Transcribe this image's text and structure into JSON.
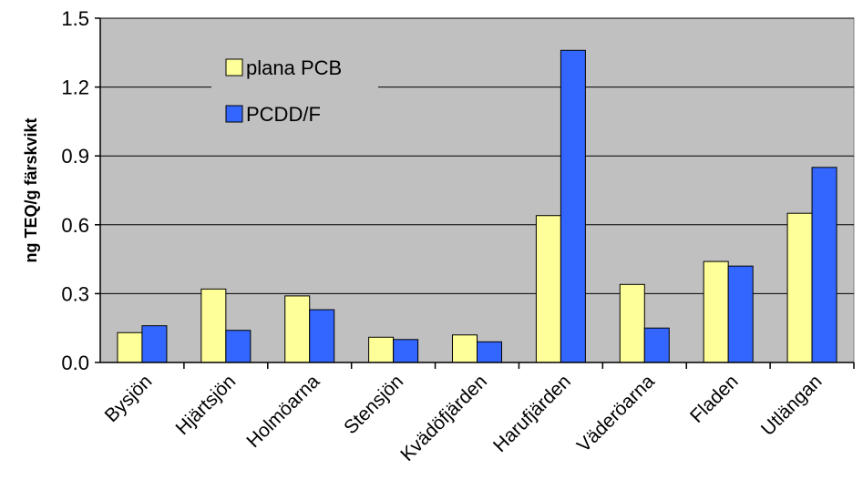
{
  "chart_data": {
    "type": "bar",
    "title": "",
    "xlabel": "",
    "ylabel": "ng TEQ/g färskvikt",
    "ylim": [
      0,
      1.5
    ],
    "yticks": [
      "0.0",
      "0.3",
      "0.6",
      "0.9",
      "1.2",
      "1.5"
    ],
    "grid": true,
    "legend_position": "top-left",
    "categories": [
      "Bysjön",
      "Hjärtsjön",
      "Holmöarna",
      "Stensjön",
      "Kvädöfjärden",
      "Harufjärden",
      "Väderöarna",
      "Fladen",
      "Utlängan"
    ],
    "series": [
      {
        "name": "plana PCB",
        "color": "#FFFF99",
        "values": [
          0.13,
          0.32,
          0.29,
          0.11,
          0.12,
          0.64,
          0.34,
          0.44,
          0.65
        ]
      },
      {
        "name": "PCDD/F",
        "color": "#3366FF",
        "values": [
          0.16,
          0.14,
          0.23,
          0.1,
          0.09,
          1.36,
          0.15,
          0.42,
          0.85
        ]
      }
    ],
    "plot_background": "#C0C0C0"
  }
}
